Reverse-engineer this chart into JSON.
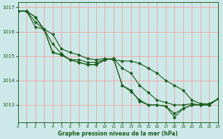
{
  "title": "Graphe pression niveau de la mer (hPa)",
  "bg_color": "#cce8e8",
  "grid_color": "#f0a0a0",
  "line_color": "#1a5c1a",
  "marker_color": "#1a5c1a",
  "xlim": [
    0,
    23
  ],
  "ylim": [
    1012.3,
    1017.2
  ],
  "yticks": [
    1013,
    1014,
    1015,
    1016,
    1017
  ],
  "xticks": [
    0,
    1,
    2,
    3,
    4,
    5,
    6,
    7,
    8,
    9,
    10,
    11,
    12,
    13,
    14,
    15,
    16,
    17,
    18,
    19,
    20,
    21,
    22,
    23
  ],
  "series": [
    [
      1016.85,
      1016.85,
      1016.6,
      1016.1,
      1015.9,
      1015.3,
      1015.15,
      1015.05,
      1014.9,
      1014.85,
      1014.9,
      1014.85,
      1014.8,
      1014.8,
      1014.7,
      1014.5,
      1014.3,
      1014.0,
      1013.8,
      1013.6,
      1013.2,
      1013.05,
      1013.05,
      1013.25
    ],
    [
      1016.85,
      1016.85,
      1016.6,
      1016.1,
      1015.5,
      1015.1,
      1014.85,
      1014.85,
      1014.75,
      1014.75,
      1014.85,
      1014.9,
      1014.5,
      1014.3,
      1013.8,
      1013.5,
      1013.2,
      1013.1,
      1013.0,
      1013.0,
      1013.05,
      1013.0,
      1013.0,
      1013.25
    ],
    [
      1016.85,
      1016.85,
      1016.4,
      1016.1,
      1015.15,
      1015.05,
      1014.85,
      1014.75,
      1014.65,
      1014.65,
      1014.85,
      1014.9,
      1013.8,
      1013.6,
      1013.15,
      1013.0,
      1013.0,
      1012.95,
      1012.65,
      1012.85,
      1013.0,
      1013.0,
      1013.0,
      1013.25
    ],
    [
      1016.85,
      1016.85,
      1016.2,
      1016.1,
      1015.15,
      1015.05,
      1014.85,
      1014.75,
      1014.65,
      1014.65,
      1014.85,
      1014.9,
      1013.8,
      1013.55,
      1013.2,
      1013.0,
      1013.0,
      1012.95,
      1012.5,
      1012.85,
      1013.0,
      1013.0,
      1013.0,
      1013.25
    ]
  ]
}
